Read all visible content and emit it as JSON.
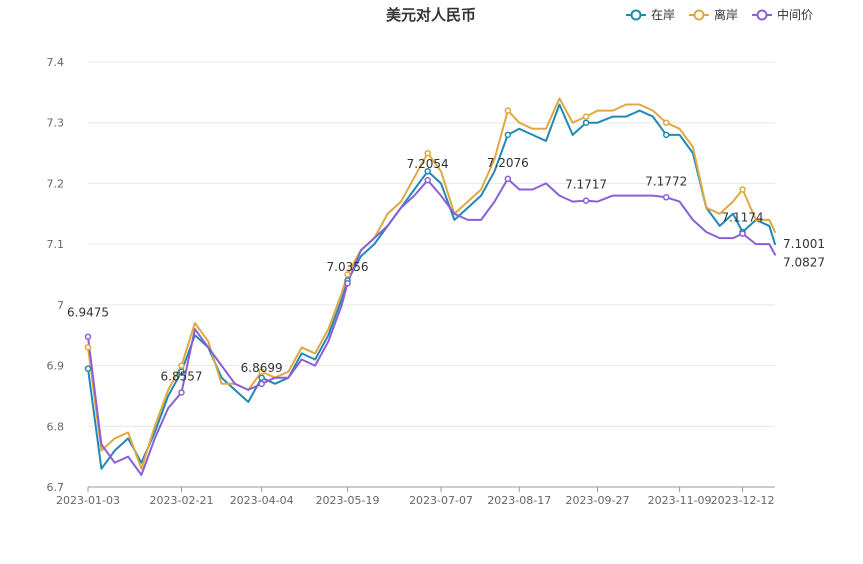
{
  "chart_data": {
    "type": "line",
    "title": "美元对人民币",
    "xlabel": "",
    "ylabel": "",
    "ylim": [
      6.7,
      7.4
    ],
    "yticks": [
      "6.7",
      "6.8",
      "6.9",
      "7",
      "7.1",
      "7.2",
      "7.3",
      "7.4"
    ],
    "x_tick_labels": [
      "2023-01-03",
      "2023-02-21",
      "2023-04-04",
      "2023-05-19",
      "2023-07-07",
      "2023-08-17",
      "2023-09-27",
      "2023-11-09",
      "2023-12-12"
    ],
    "grid": "horizontal",
    "legend_position": "top-right",
    "x": [
      "2023-01-03",
      "2023-01-10",
      "2023-01-17",
      "2023-01-24",
      "2023-01-31",
      "2023-02-07",
      "2023-02-14",
      "2023-02-21",
      "2023-02-28",
      "2023-03-07",
      "2023-03-14",
      "2023-03-21",
      "2023-03-28",
      "2023-04-04",
      "2023-04-11",
      "2023-04-18",
      "2023-04-25",
      "2023-05-02",
      "2023-05-09",
      "2023-05-16",
      "2023-05-19",
      "2023-05-26",
      "2023-06-02",
      "2023-06-09",
      "2023-06-16",
      "2023-06-23",
      "2023-06-30",
      "2023-07-07",
      "2023-07-14",
      "2023-07-21",
      "2023-07-28",
      "2023-08-04",
      "2023-08-11",
      "2023-08-17",
      "2023-08-24",
      "2023-08-31",
      "2023-09-07",
      "2023-09-14",
      "2023-09-21",
      "2023-09-27",
      "2023-10-05",
      "2023-10-12",
      "2023-10-19",
      "2023-10-26",
      "2023-11-02",
      "2023-11-09",
      "2023-11-16",
      "2023-11-23",
      "2023-11-30",
      "2023-12-07",
      "2023-12-12",
      "2023-12-19",
      "2023-12-26",
      "2023-12-29"
    ],
    "series": [
      {
        "name": "在岸",
        "color": "#2189b5",
        "values": [
          6.895,
          6.73,
          6.76,
          6.78,
          6.74,
          6.79,
          6.85,
          6.89,
          6.95,
          6.93,
          6.88,
          6.86,
          6.84,
          6.88,
          6.87,
          6.88,
          6.92,
          6.91,
          6.95,
          7.01,
          7.04,
          7.08,
          7.1,
          7.13,
          7.16,
          7.19,
          7.22,
          7.2,
          7.14,
          7.16,
          7.18,
          7.22,
          7.28,
          7.29,
          7.28,
          7.27,
          7.33,
          7.28,
          7.3,
          7.3,
          7.31,
          7.31,
          7.32,
          7.31,
          7.28,
          7.28,
          7.25,
          7.16,
          7.13,
          7.15,
          7.12,
          7.14,
          7.13,
          7.1
        ]
      },
      {
        "name": "离岸",
        "color": "#e0a840",
        "values": [
          6.93,
          6.76,
          6.78,
          6.79,
          6.73,
          6.8,
          6.86,
          6.9,
          6.97,
          6.94,
          6.87,
          6.87,
          6.86,
          6.89,
          6.88,
          6.89,
          6.93,
          6.92,
          6.96,
          7.02,
          7.05,
          7.09,
          7.11,
          7.15,
          7.17,
          7.21,
          7.25,
          7.22,
          7.15,
          7.17,
          7.19,
          7.24,
          7.32,
          7.3,
          7.29,
          7.29,
          7.34,
          7.3,
          7.31,
          7.32,
          7.32,
          7.33,
          7.33,
          7.32,
          7.3,
          7.29,
          7.26,
          7.16,
          7.15,
          7.17,
          7.19,
          7.14,
          7.14,
          7.12
        ]
      },
      {
        "name": "中间价",
        "color": "#8b5fd6",
        "values": [
          6.9475,
          6.77,
          6.74,
          6.75,
          6.72,
          6.78,
          6.83,
          6.8557,
          6.96,
          6.93,
          6.9,
          6.87,
          6.86,
          6.8699,
          6.88,
          6.88,
          6.91,
          6.9,
          6.94,
          7.0,
          7.0356,
          7.09,
          7.11,
          7.13,
          7.16,
          7.18,
          7.2054,
          7.18,
          7.15,
          7.14,
          7.14,
          7.17,
          7.2076,
          7.19,
          7.19,
          7.2,
          7.18,
          7.17,
          7.1717,
          7.17,
          7.18,
          7.18,
          7.18,
          7.18,
          7.1772,
          7.17,
          7.14,
          7.12,
          7.11,
          7.11,
          7.1174,
          7.1,
          7.1,
          7.0827
        ]
      }
    ],
    "annotations": [
      {
        "text": "6.9475",
        "x": "2023-01-03",
        "y": 6.9475
      },
      {
        "text": "6.8557",
        "x": "2023-02-21",
        "y": 6.8557
      },
      {
        "text": "6.8699",
        "x": "2023-04-04",
        "y": 6.8699
      },
      {
        "text": "7.0356",
        "x": "2023-05-19",
        "y": 7.0356
      },
      {
        "text": "7.2054",
        "x": "2023-06-30",
        "y": 7.2054
      },
      {
        "text": "7.2076",
        "x": "2023-08-11",
        "y": 7.2076
      },
      {
        "text": "7.1717",
        "x": "2023-09-21",
        "y": 7.1717
      },
      {
        "text": "7.1772",
        "x": "2023-11-02",
        "y": 7.1772
      },
      {
        "text": "7.1174",
        "x": "2023-12-12",
        "y": 7.1174
      },
      {
        "text": "7.1001",
        "x": "2023-12-29",
        "y": 7.1001
      },
      {
        "text": "7.0827",
        "x": "2023-12-29",
        "y": 7.0827
      }
    ]
  }
}
